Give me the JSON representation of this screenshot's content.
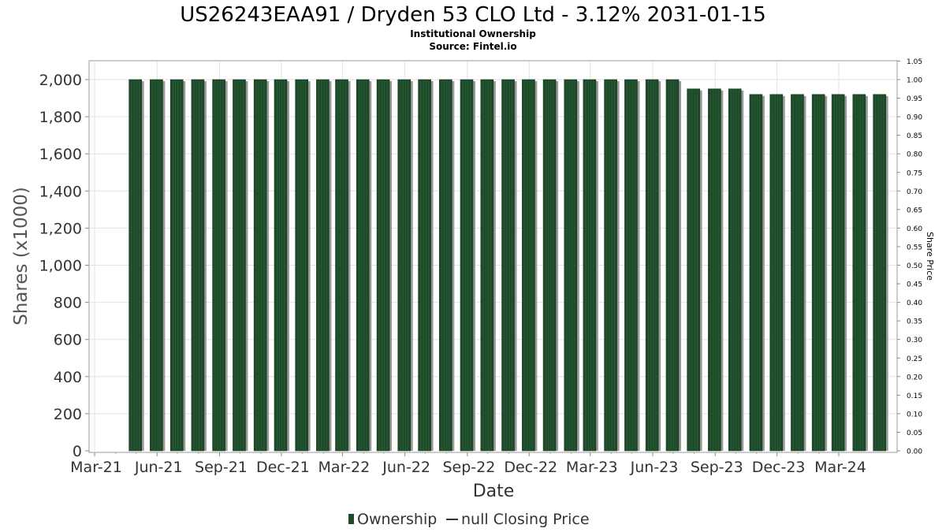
{
  "chart_data": {
    "type": "bar",
    "title": "US26243EAA91 / Dryden 53 CLO Ltd - 3.12% 2031-01-15",
    "subtitle_lines": [
      "Institutional Ownership",
      "Source: Fintel.io"
    ],
    "xlabel": "Date",
    "ylabel": "Shares (x1000)",
    "y2label": "Share Price",
    "ylim": [
      0,
      2100
    ],
    "y2lim": [
      0,
      1.05
    ],
    "y_ticks": [
      "0",
      "200",
      "400",
      "600",
      "800",
      "1,000",
      "1,200",
      "1,400",
      "1,600",
      "1,800",
      "2,000"
    ],
    "y2_ticks": [
      "0.00",
      "0.05",
      "0.10",
      "0.15",
      "0.20",
      "0.25",
      "0.30",
      "0.35",
      "0.40",
      "0.45",
      "0.50",
      "0.55",
      "0.60",
      "0.65",
      "0.70",
      "0.75",
      "0.80",
      "0.85",
      "0.90",
      "0.95",
      "1.00",
      "1.05"
    ],
    "x_ticks": [
      "Mar-21",
      "Jun-21",
      "Sep-21",
      "Dec-21",
      "Mar-22",
      "Jun-22",
      "Sep-22",
      "Dec-22",
      "Mar-23",
      "Jun-23",
      "Sep-23",
      "Dec-23",
      "Mar-24"
    ],
    "grid": true,
    "legend_position": "bottom-center",
    "series": [
      {
        "name": "Ownership",
        "color": "#1e4a2a",
        "x": [
          "2021-04-30",
          "2021-05-31",
          "2021-06-30",
          "2021-07-31",
          "2021-08-31",
          "2021-09-30",
          "2021-10-31",
          "2021-11-30",
          "2021-12-31",
          "2022-01-31",
          "2022-02-28",
          "2022-03-31",
          "2022-04-30",
          "2022-05-31",
          "2022-06-30",
          "2022-07-31",
          "2022-08-31",
          "2022-09-30",
          "2022-10-31",
          "2022-11-30",
          "2022-12-31",
          "2023-01-31",
          "2023-02-28",
          "2023-03-31",
          "2023-04-30",
          "2023-05-31",
          "2023-06-30",
          "2023-07-31",
          "2023-08-31",
          "2023-09-30",
          "2023-10-31",
          "2023-11-30",
          "2023-12-31",
          "2024-01-31",
          "2024-02-29",
          "2024-03-31",
          "2024-04-30"
        ],
        "values": [
          2000,
          2000,
          2000,
          2000,
          2000,
          2000,
          2000,
          2000,
          2000,
          2000,
          2000,
          2000,
          2000,
          2000,
          2000,
          2000,
          2000,
          2000,
          2000,
          2000,
          2000,
          2000,
          2000,
          2000,
          2000,
          2000,
          2000,
          1950,
          1950,
          1950,
          1920,
          1920,
          1920,
          1920,
          1920,
          1920,
          1920
        ]
      }
    ],
    "legend": [
      {
        "label": "Ownership",
        "kind": "bar"
      },
      {
        "label": "null Closing Price",
        "kind": "line"
      }
    ]
  }
}
